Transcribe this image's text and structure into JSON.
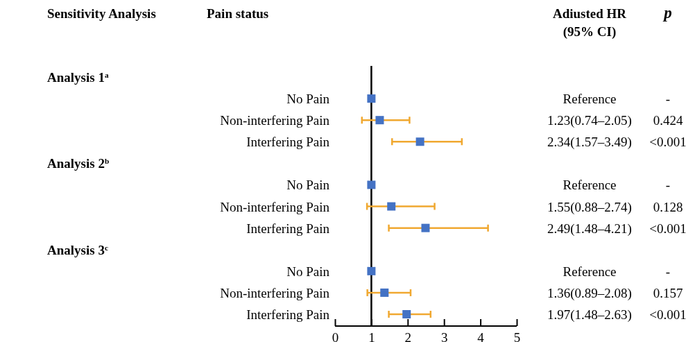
{
  "chart_data": {
    "type": "scatter",
    "categories": [
      null,
      "No Pain",
      "Non-interfering Pain",
      "Interfering Pain",
      null,
      "No Pain",
      "Non-interfering Pain",
      "Interfering Pain",
      null,
      "No Pain",
      "Non-interfering Pain",
      "Interfering Pain"
    ],
    "series": [
      {
        "color": "#4472c4",
        "values": [
          null,
          1,
          1.23,
          2.34,
          null,
          1,
          1.55,
          2.49,
          null,
          1,
          1.36,
          1.97
        ],
        "errors": [
          null,
          null,
          [
            0.74,
            2.05
          ],
          [
            1.57,
            3.49
          ],
          null,
          null,
          [
            0.88,
            2.74
          ],
          [
            1.48,
            4.21
          ],
          null,
          null,
          [
            0.89,
            2.08
          ],
          [
            1.48,
            2.63
          ]
        ]
      }
    ],
    "orientation": "horizontal",
    "xlim": [
      0,
      5
    ],
    "xticks": [
      0,
      1,
      2,
      3,
      4,
      5
    ],
    "marker": "square",
    "ref_lines": [
      {
        "axis": "x",
        "value": 1
      }
    ],
    "annotations": [
      "Sensitivity Analysis",
      "Pain status",
      "Adiusted HR\n(95% CI)",
      "p",
      "Analysis 1$^{a}$",
      "Analysis 2$^{b}$",
      "Analysis 3$^{c}$",
      "Reference",
      "1.23(0.74–2.05)",
      "2.34(1.57–3.49)",
      "Reference",
      "1.55(0.88–2.74)",
      "2.49(1.48–4.21)",
      "Reference",
      "1.36(0.89–2.08)",
      "1.97(1.48–2.63)",
      "-",
      "0.424",
      "<0.001",
      "-",
      "0.128",
      "<0.001",
      "-",
      "0.157",
      "<0.001"
    ]
  }
}
